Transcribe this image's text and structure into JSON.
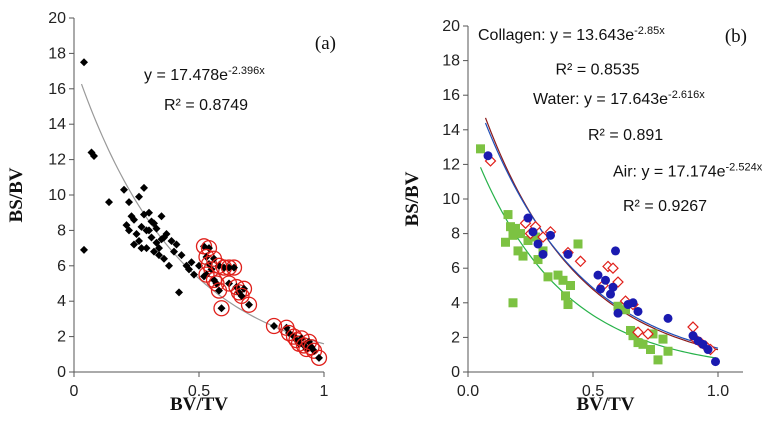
{
  "chart_data": [
    {
      "type": "scatter",
      "panel_label": "(a)",
      "xlabel": "BV/TV",
      "ylabel": "BS/BV",
      "xlim": [
        0,
        1
      ],
      "ylim": [
        0,
        20
      ],
      "xticks": [
        {
          "v": 0,
          "label": "0"
        },
        {
          "v": 0.5,
          "label": "0.5"
        },
        {
          "v": 1,
          "label": "1"
        }
      ],
      "yticks": [
        {
          "v": 0,
          "label": "0"
        },
        {
          "v": 2,
          "label": "2"
        },
        {
          "v": 4,
          "label": "4"
        },
        {
          "v": 6,
          "label": "6"
        },
        {
          "v": 8,
          "label": "8"
        },
        {
          "v": 10,
          "label": "10"
        },
        {
          "v": 12,
          "label": "12"
        },
        {
          "v": 14,
          "label": "14"
        },
        {
          "v": 16,
          "label": "16"
        },
        {
          "v": 18,
          "label": "18"
        },
        {
          "v": 20,
          "label": "20"
        }
      ],
      "grid": false,
      "annotations": [
        {
          "text": "y = 17.478e",
          "sup": "-2.396x",
          "x": 0.28,
          "y": 16.5
        },
        {
          "text": "R² = 0.8749",
          "x": 0.36,
          "y": 14.8
        }
      ],
      "trendlines": [
        {
          "a": 17.478,
          "b": -2.396,
          "x_range": [
            0.03,
            1.0
          ],
          "color": "#999999"
        }
      ],
      "series": [
        {
          "marker": "diamond",
          "color": "#000000",
          "points": [
            [
              0.04,
              17.5
            ],
            [
              0.07,
              12.4
            ],
            [
              0.08,
              12.2
            ],
            [
              0.04,
              6.9
            ],
            [
              0.14,
              9.6
            ],
            [
              0.2,
              10.3
            ],
            [
              0.22,
              9.6
            ],
            [
              0.23,
              8.8
            ],
            [
              0.26,
              9.9
            ],
            [
              0.28,
              10.4
            ],
            [
              0.21,
              8.3
            ],
            [
              0.22,
              8.0
            ],
            [
              0.24,
              8.6
            ],
            [
              0.25,
              7.8
            ],
            [
              0.26,
              7.4
            ],
            [
              0.27,
              8.2
            ],
            [
              0.28,
              8.9
            ],
            [
              0.29,
              7.0
            ],
            [
              0.3,
              8.0
            ],
            [
              0.3,
              9.0
            ],
            [
              0.31,
              7.6
            ],
            [
              0.31,
              8.5
            ],
            [
              0.32,
              6.8
            ],
            [
              0.33,
              7.3
            ],
            [
              0.33,
              8.1
            ],
            [
              0.34,
              6.6
            ],
            [
              0.34,
              7.0
            ],
            [
              0.35,
              7.5
            ],
            [
              0.35,
              8.8
            ],
            [
              0.36,
              6.4
            ],
            [
              0.37,
              7.8
            ],
            [
              0.38,
              6.0
            ],
            [
              0.39,
              7.4
            ],
            [
              0.4,
              6.8
            ],
            [
              0.41,
              7.2
            ],
            [
              0.42,
              4.5
            ],
            [
              0.43,
              6.6
            ],
            [
              0.45,
              6.0
            ],
            [
              0.46,
              5.8
            ],
            [
              0.47,
              6.2
            ],
            [
              0.48,
              5.5
            ],
            [
              0.5,
              6.0
            ],
            [
              0.52,
              5.4
            ],
            [
              0.24,
              7.2
            ],
            [
              0.27,
              7.0
            ],
            [
              0.36,
              7.6
            ],
            [
              0.32,
              8.4
            ],
            [
              0.29,
              8.0
            ]
          ]
        },
        {
          "marker": "diamond-circled",
          "color": "#000000",
          "ring_color": "#e0201b",
          "points": [
            [
              0.52,
              7.1
            ],
            [
              0.54,
              7.0
            ],
            [
              0.53,
              6.5
            ],
            [
              0.54,
              6.1
            ],
            [
              0.55,
              5.8
            ],
            [
              0.53,
              5.5
            ],
            [
              0.56,
              5.2
            ],
            [
              0.57,
              5.0
            ],
            [
              0.58,
              4.6
            ],
            [
              0.56,
              6.4
            ],
            [
              0.58,
              6.0
            ],
            [
              0.6,
              5.9
            ],
            [
              0.62,
              5.9
            ],
            [
              0.64,
              5.9
            ],
            [
              0.59,
              3.6
            ],
            [
              0.62,
              5.0
            ],
            [
              0.65,
              4.8
            ],
            [
              0.66,
              4.5
            ],
            [
              0.68,
              4.7
            ],
            [
              0.7,
              3.8
            ],
            [
              0.67,
              4.3
            ],
            [
              0.8,
              2.6
            ],
            [
              0.85,
              2.5
            ],
            [
              0.86,
              2.2
            ],
            [
              0.88,
              2.0
            ],
            [
              0.89,
              1.8
            ],
            [
              0.9,
              1.6
            ],
            [
              0.91,
              1.9
            ],
            [
              0.92,
              1.5
            ],
            [
              0.93,
              1.3
            ],
            [
              0.94,
              1.7
            ],
            [
              0.95,
              1.4
            ],
            [
              0.96,
              1.2
            ],
            [
              0.98,
              0.8
            ]
          ]
        }
      ]
    },
    {
      "type": "scatter",
      "panel_label": "(b)",
      "xlabel": "BV/TV",
      "ylabel": "BS/BV",
      "xlim": [
        0,
        1.1
      ],
      "ylim": [
        0,
        20
      ],
      "xticks": [
        {
          "v": 0,
          "label": "0.0"
        },
        {
          "v": 0.5,
          "label": "0.5"
        },
        {
          "v": 1.0,
          "label": "1.0"
        }
      ],
      "yticks": [
        {
          "v": 0,
          "label": "0"
        },
        {
          "v": 2,
          "label": "2"
        },
        {
          "v": 4,
          "label": "4"
        },
        {
          "v": 6,
          "label": "6"
        },
        {
          "v": 8,
          "label": "8"
        },
        {
          "v": 10,
          "label": "10"
        },
        {
          "v": 12,
          "label": "12"
        },
        {
          "v": 14,
          "label": "14"
        },
        {
          "v": 16,
          "label": "16"
        },
        {
          "v": 18,
          "label": "18"
        },
        {
          "v": 20,
          "label": "20"
        }
      ],
      "grid": false,
      "annotations": [
        {
          "text": "Collagen: y = 13.643e",
          "sup": "-2.85x",
          "x": 0.04,
          "y": 19.2
        },
        {
          "text": "R² = 0.8535",
          "x": 0.35,
          "y": 17.2
        },
        {
          "text": "Water: y = 17.643e",
          "sup": "-2.616x",
          "x": 0.26,
          "y": 15.5
        },
        {
          "text": "R² = 0.891",
          "x": 0.48,
          "y": 13.4
        },
        {
          "text": "Air: y = 17.174e",
          "sup": "-2.524x",
          "x": 0.58,
          "y": 11.3
        },
        {
          "text": "R² = 0.9267",
          "x": 0.62,
          "y": 9.3
        }
      ],
      "trendlines": [
        {
          "a": 13.643,
          "b": -2.85,
          "x_range": [
            0.05,
            1.0
          ],
          "color": "#27b24a"
        },
        {
          "a": 17.643,
          "b": -2.616,
          "x_range": [
            0.07,
            1.0
          ],
          "color": "#8b1a1a"
        },
        {
          "a": 17.174,
          "b": -2.524,
          "x_range": [
            0.07,
            1.0
          ],
          "color": "#1f4fb8"
        }
      ],
      "series": [
        {
          "name_hint": "Collagen",
          "marker": "square",
          "color": "#7cc242",
          "points": [
            [
              0.05,
              12.9
            ],
            [
              0.16,
              9.1
            ],
            [
              0.17,
              8.4
            ],
            [
              0.18,
              7.9
            ],
            [
              0.15,
              7.5
            ],
            [
              0.19,
              8.3
            ],
            [
              0.21,
              8.0
            ],
            [
              0.2,
              7.0
            ],
            [
              0.22,
              6.7
            ],
            [
              0.18,
              4.0
            ],
            [
              0.24,
              7.6
            ],
            [
              0.27,
              7.8
            ],
            [
              0.28,
              6.5
            ],
            [
              0.3,
              7.0
            ],
            [
              0.32,
              5.5
            ],
            [
              0.36,
              5.6
            ],
            [
              0.38,
              5.3
            ],
            [
              0.39,
              4.4
            ],
            [
              0.4,
              3.9
            ],
            [
              0.41,
              5.0
            ],
            [
              0.44,
              7.4
            ],
            [
              0.6,
              3.8
            ],
            [
              0.63,
              3.6
            ],
            [
              0.65,
              2.4
            ],
            [
              0.66,
              2.1
            ],
            [
              0.67,
              2.3
            ],
            [
              0.68,
              1.7
            ],
            [
              0.7,
              1.6
            ],
            [
              0.73,
              1.3
            ],
            [
              0.74,
              2.2
            ],
            [
              0.76,
              0.7
            ],
            [
              0.78,
              1.9
            ],
            [
              0.8,
              1.2
            ]
          ]
        },
        {
          "name_hint": "Water",
          "marker": "diamond-open",
          "color": "#e0201b",
          "points": [
            [
              0.09,
              12.2
            ],
            [
              0.23,
              8.6
            ],
            [
              0.25,
              8.0
            ],
            [
              0.27,
              8.4
            ],
            [
              0.3,
              7.8
            ],
            [
              0.33,
              8.1
            ],
            [
              0.4,
              6.9
            ],
            [
              0.45,
              6.4
            ],
            [
              0.54,
              5.0
            ],
            [
              0.56,
              6.1
            ],
            [
              0.58,
              6.0
            ],
            [
              0.6,
              5.2
            ],
            [
              0.63,
              4.1
            ],
            [
              0.66,
              3.9
            ],
            [
              0.68,
              2.3
            ],
            [
              0.72,
              2.2
            ],
            [
              0.9,
              2.6
            ],
            [
              0.91,
              1.9
            ],
            [
              0.93,
              1.7
            ],
            [
              0.95,
              1.5
            ],
            [
              0.97,
              1.3
            ]
          ]
        },
        {
          "name_hint": "Air",
          "marker": "circle",
          "color": "#1a1ab0",
          "points": [
            [
              0.08,
              12.5
            ],
            [
              0.24,
              8.9
            ],
            [
              0.26,
              8.1
            ],
            [
              0.28,
              7.4
            ],
            [
              0.3,
              6.8
            ],
            [
              0.33,
              7.9
            ],
            [
              0.4,
              6.8
            ],
            [
              0.52,
              5.6
            ],
            [
              0.53,
              4.8
            ],
            [
              0.55,
              5.3
            ],
            [
              0.57,
              4.5
            ],
            [
              0.58,
              4.9
            ],
            [
              0.59,
              7.0
            ],
            [
              0.6,
              3.4
            ],
            [
              0.64,
              3.9
            ],
            [
              0.66,
              4.0
            ],
            [
              0.68,
              3.5
            ],
            [
              0.8,
              3.1
            ],
            [
              0.9,
              2.1
            ],
            [
              0.92,
              1.8
            ],
            [
              0.94,
              1.6
            ],
            [
              0.96,
              1.3
            ],
            [
              0.99,
              0.6
            ]
          ]
        }
      ]
    }
  ]
}
